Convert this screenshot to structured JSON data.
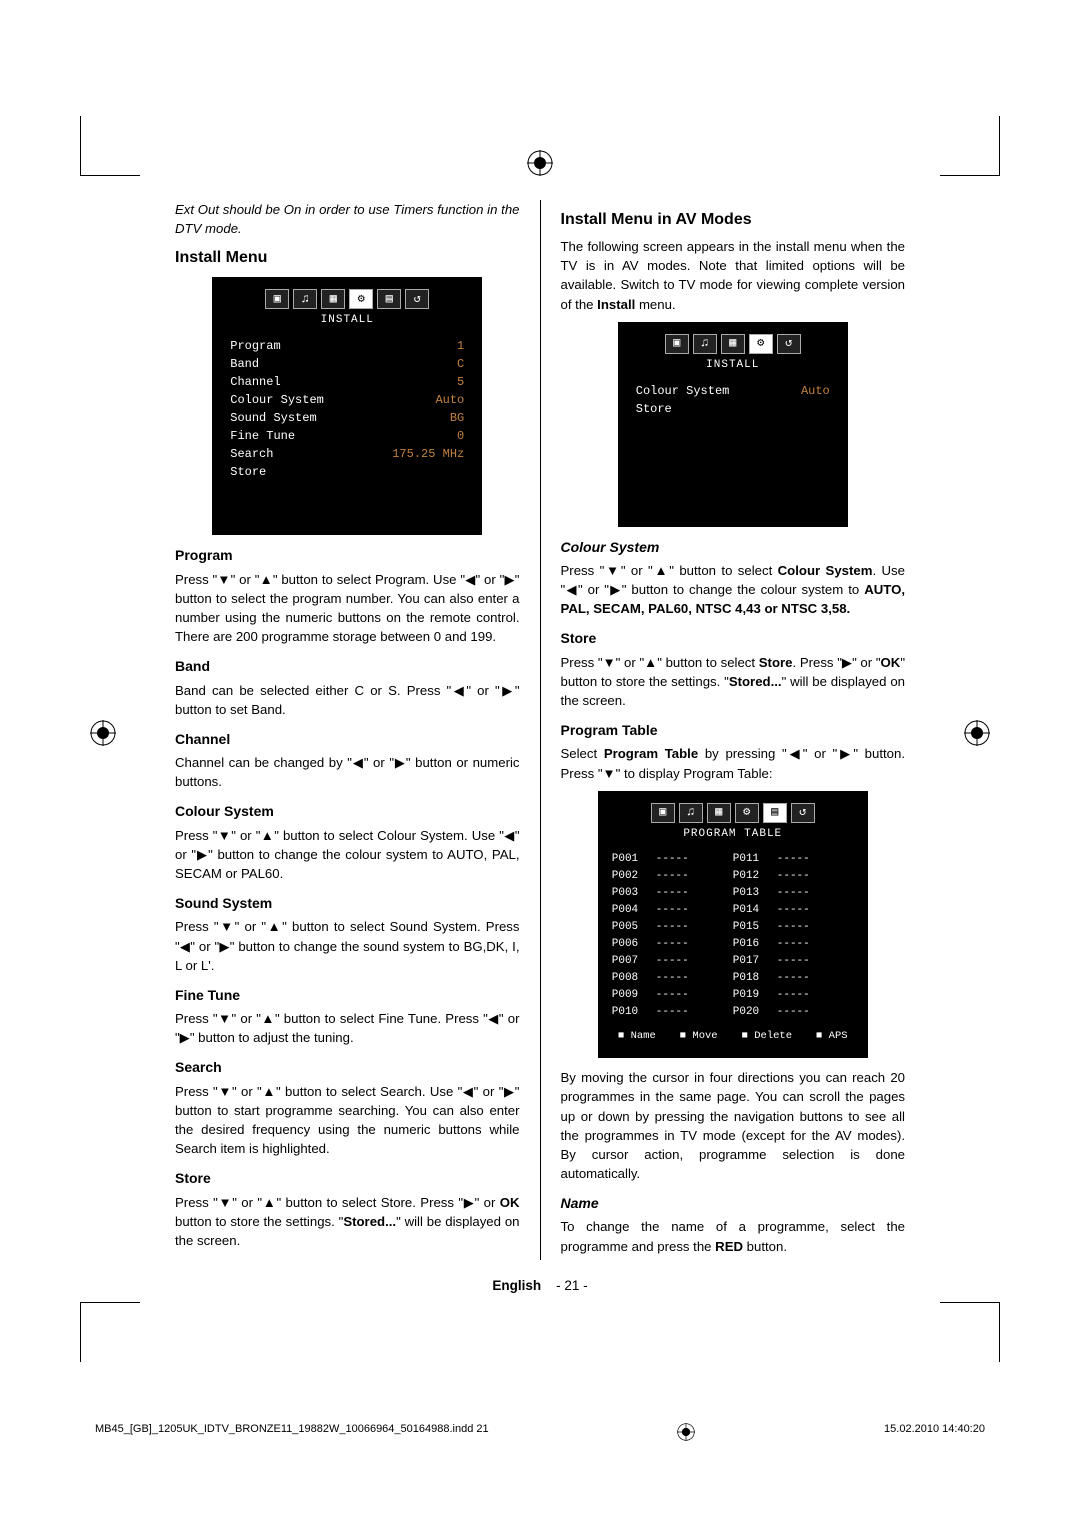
{
  "note_italic": "Ext Out should be On in order to use Timers function in the DTV mode.",
  "left": {
    "install_menu_title": "Install Menu",
    "osd_install": {
      "title": "INSTALL",
      "rows": [
        {
          "label": "Program",
          "value": "1"
        },
        {
          "label": "Band",
          "value": "C"
        },
        {
          "label": "Channel",
          "value": "5"
        },
        {
          "label": "Colour System",
          "value": "Auto"
        },
        {
          "label": "Sound System",
          "value": "BG"
        },
        {
          "label": "Fine Tune",
          "value": "0"
        },
        {
          "label": "Search",
          "value": "175.25 MHz"
        },
        {
          "label": "Store",
          "value": ""
        }
      ]
    },
    "program_h": "Program",
    "program_p": "Press \"▼\" or \"▲\" button to select Program. Use \"◀\" or \"▶\" button to select the program number. You can also enter a number using the numeric buttons on the remote control. There are 200 programme storage between 0 and 199.",
    "band_h": "Band",
    "band_p": "Band can be selected either C or S. Press \"◀\" or \"▶\" button to set Band.",
    "channel_h": "Channel",
    "channel_p": "Channel can be changed by \"◀\" or \"▶\" button or numeric buttons.",
    "colour_h": "Colour System",
    "colour_p": "Press \"▼\" or \"▲\" button to select Colour System. Use \"◀\" or \"▶\" button to change the colour system to AUTO, PAL, SECAM or PAL60.",
    "sound_h": "Sound System",
    "sound_p": "Press \"▼\" or \"▲\" button to select Sound System. Press \"◀\" or \"▶\" button to change the sound system to BG,DK, I, L or L'.",
    "fine_h": "Fine Tune",
    "fine_p": "Press \"▼\" or \"▲\" button to select Fine Tune. Press \"◀\" or \"▶\" button to adjust the tuning.",
    "search_h": "Search",
    "search_p": "Press \"▼\" or \"▲\" button to select Search. Use \"◀\" or \"▶\" button to start programme searching. You can also enter the desired frequency using the numeric buttons while Search item is highlighted.",
    "store_h": "Store",
    "store_p_a": "Press \"▼\" or \"▲\" button to select Store. Press \"▶\" or ",
    "store_p_b": "OK",
    "store_p_c": " button to store the settings. \"",
    "store_p_d": "Stored...",
    "store_p_e": "\" will be displayed on the screen."
  },
  "right": {
    "avmodes_h": "Install Menu in AV Modes",
    "avmodes_p_a": "The following screen appears in the install menu when the TV is in AV modes. Note that limited options will be available. Switch to TV mode for viewing complete version of the ",
    "avmodes_p_b": "Install",
    "avmodes_p_c": " menu.",
    "osd_av": {
      "title": "INSTALL",
      "rows": [
        {
          "label": "Colour System",
          "value": "Auto"
        },
        {
          "label": "Store",
          "value": ""
        }
      ]
    },
    "colour_h": "Colour System",
    "colour_p_a": "Press \"▼\" or \"▲\" button to select ",
    "colour_p_b": "Colour System",
    "colour_p_c": ". Use \"◀\" or \"▶\" button to change the colour system to ",
    "colour_p_d": "AUTO, PAL, SECAM, PAL60, NTSC 4,43 or NTSC 3,58.",
    "store_h": "Store",
    "store_p_a": "Press \"▼\" or \"▲\" button to select ",
    "store_p_b": "Store",
    "store_p_c": ". Press \"▶\" or \"",
    "store_p_d": "OK",
    "store_p_e": "\" button to store the settings. \"",
    "store_p_f": "Stored...",
    "store_p_g": "\" will be displayed on the screen.",
    "pt_h": "Program Table",
    "pt_p_a": "Select ",
    "pt_p_b": "Program Table",
    "pt_p_c": " by pressing \"◀\" or \"▶\" button. Press \"▼\" to display Program Table:",
    "osd_pt": {
      "title": "PROGRAM TABLE",
      "left_ids": [
        "P001",
        "P002",
        "P003",
        "P004",
        "P005",
        "P006",
        "P007",
        "P008",
        "P009",
        "P010"
      ],
      "right_ids": [
        "P011",
        "P012",
        "P013",
        "P014",
        "P015",
        "P016",
        "P017",
        "P018",
        "P019",
        "P020"
      ],
      "dash": "-----",
      "legend": [
        "Name",
        "Move",
        "Delete",
        "APS"
      ]
    },
    "pt_after": "By moving the cursor in four directions you can reach 20 programmes in the same page. You can scroll the pages up or down by pressing the navigation buttons to see all the programmes in TV mode (except for the AV modes). By cursor action, programme selection is done automatically.",
    "name_h": "Name",
    "name_p_a": "To change the name of a programme, select the programme and press the ",
    "name_p_b": "RED",
    "name_p_c": " button."
  },
  "page_footer": {
    "lang": "English",
    "num": "- 21 -"
  },
  "bottom": {
    "left": "MB45_[GB]_1205UK_IDTV_BRONZE11_19882W_10066964_50164988.indd   21",
    "right": "15.02.2010   14:40:20"
  },
  "tabs_icons": [
    "▣",
    "♫",
    "▦",
    "⚙",
    "▤",
    "↺"
  ],
  "tabs_icons_sm": [
    "▣",
    "♫",
    "▦",
    "⚙",
    "↺"
  ]
}
